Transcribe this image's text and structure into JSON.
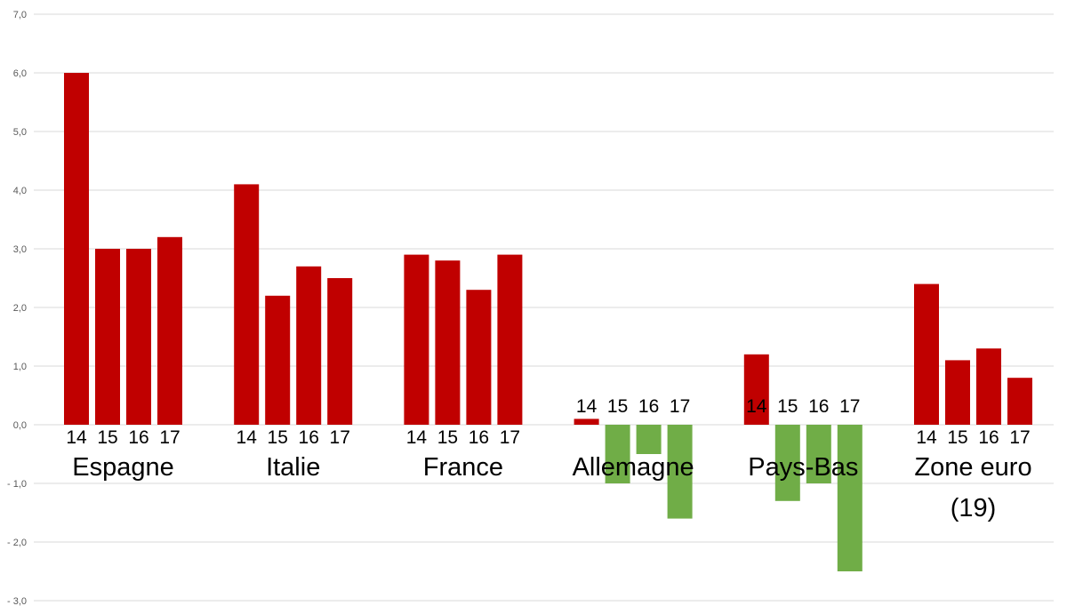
{
  "chart_data": {
    "type": "bar",
    "title": "",
    "xlabel": "",
    "ylabel": "",
    "ylim": [
      -3,
      7
    ],
    "yticks": [
      "7,0",
      "6,0",
      "5,0",
      "4,0",
      "3,0",
      "2,0",
      "1,0",
      "0,0",
      "- 1,0",
      "- 2,0",
      "- 3,0"
    ],
    "grid": true,
    "years": [
      "14",
      "15",
      "16",
      "17"
    ],
    "colors": {
      "positive": "#c00000",
      "negative": "#70ad47"
    },
    "groups": [
      {
        "name": [
          "Espagne"
        ],
        "values": [
          6.0,
          3.0,
          3.0,
          3.2
        ]
      },
      {
        "name": [
          "Italie"
        ],
        "values": [
          4.1,
          2.2,
          2.7,
          2.5
        ]
      },
      {
        "name": [
          "France"
        ],
        "values": [
          2.9,
          2.8,
          2.3,
          2.9
        ]
      },
      {
        "name": [
          "Allemagne"
        ],
        "values": [
          0.1,
          -1.0,
          -0.5,
          -1.6
        ]
      },
      {
        "name": [
          "Pays-Bas"
        ],
        "values": [
          1.2,
          -1.3,
          -1.0,
          -2.5
        ]
      },
      {
        "name": [
          "Zone euro",
          "(19)"
        ],
        "values": [
          2.4,
          1.1,
          1.3,
          0.8
        ]
      }
    ]
  }
}
